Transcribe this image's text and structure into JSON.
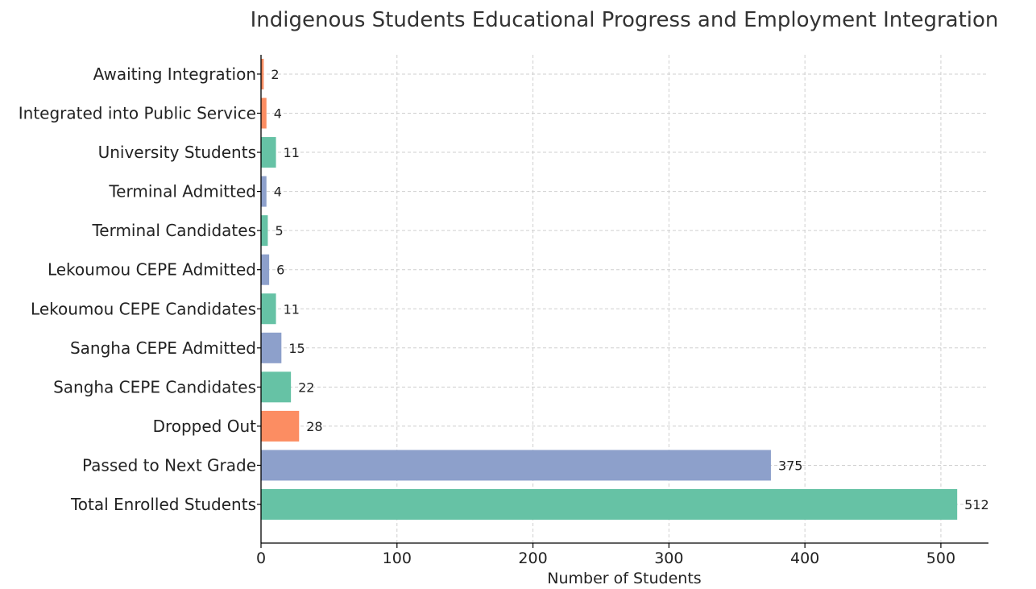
{
  "chart_data": {
    "type": "bar",
    "orientation": "horizontal",
    "title": "Indigenous Students Educational Progress and Employment Integration",
    "xlabel": "Number of Students",
    "ylabel": "",
    "xlim": [
      0,
      535
    ],
    "xticks": [
      0,
      100,
      200,
      300,
      400,
      500
    ],
    "grid": true,
    "categories": [
      "Total Enrolled Students",
      "Passed to Next Grade",
      "Dropped Out",
      "Sangha CEPE Candidates",
      "Sangha CEPE Admitted",
      "Lekoumou CEPE Candidates",
      "Lekoumou CEPE Admitted",
      "Terminal Candidates",
      "Terminal Admitted",
      "University Students",
      "Integrated into Public Service",
      "Awaiting Integration"
    ],
    "values": [
      512,
      375,
      28,
      22,
      15,
      11,
      6,
      5,
      4,
      11,
      4,
      2
    ],
    "colors": [
      "#66c2a5",
      "#8da0cb",
      "#fc8d62",
      "#66c2a5",
      "#8da0cb",
      "#66c2a5",
      "#8da0cb",
      "#66c2a5",
      "#8da0cb",
      "#66c2a5",
      "#fc8d62",
      "#fc8d62"
    ]
  }
}
